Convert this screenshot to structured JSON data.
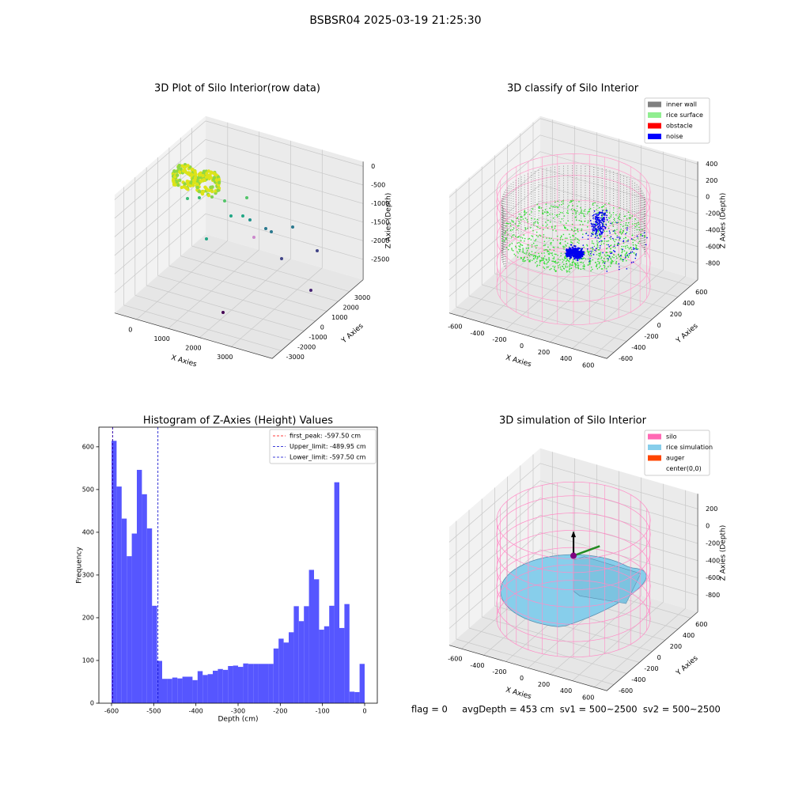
{
  "title": "BSBSR04 2025-03-19 21:25:30",
  "footer": "flag = 0     avgDepth = 453 cm  sv1 = 500~2500  sv2 = 500~2500",
  "chart_data": [
    {
      "type": "scatter3d",
      "title": "3D Plot of Silo Interior(row data)",
      "xlabel": "X Axies",
      "ylabel": "Y Axies",
      "zlabel": "Z Axies (Depth)",
      "xlim": [
        -700,
        4300
      ],
      "xticks": [
        0,
        1000,
        2000,
        3000
      ],
      "ylim": [
        -3800,
        4200
      ],
      "yticks": [
        -3000,
        -2000,
        -1000,
        0,
        1000,
        2000,
        3000
      ],
      "zlim": [
        -3050,
        130
      ],
      "zticks": [
        0,
        -500,
        -1000,
        -1500,
        -2000,
        -2500
      ],
      "grid": true
    },
    {
      "type": "scatter3d",
      "title": "3D classify of Silo Interior",
      "xlabel": "X Axies",
      "ylabel": "Y Axies",
      "zlabel": "Z Axies (Depth)",
      "xlim": [
        -710,
        710
      ],
      "xticks": [
        -600,
        -400,
        -200,
        0,
        200,
        400,
        600
      ],
      "ylim": [
        -710,
        710
      ],
      "yticks": [
        -600,
        -400,
        -200,
        0,
        200,
        400,
        600
      ],
      "zlim": [
        -1000,
        430
      ],
      "zticks": [
        -800,
        -600,
        -400,
        -200,
        0,
        200,
        400
      ],
      "grid": true,
      "legend": [
        {
          "name": "inner wall",
          "color": "#808080"
        },
        {
          "name": "rice surface",
          "color": "#90ee90"
        },
        {
          "name": "obstacle",
          "color": "#ff0000"
        },
        {
          "name": "noise",
          "color": "#0000ff"
        }
      ]
    },
    {
      "type": "histogram",
      "title": "Histogram of Z-Axies (Height) Values",
      "xlabel": "Depth (cm)",
      "ylabel": "Frequency",
      "color": "#4d4dff",
      "bins": [
        -600,
        -588,
        -576,
        -564,
        -552,
        -540,
        -528,
        -516,
        -504,
        -492,
        -480,
        -468,
        -456,
        -444,
        -432,
        -420,
        -408,
        -396,
        -384,
        -372,
        -360,
        -348,
        -336,
        -324,
        -312,
        -300,
        -288,
        -276,
        -264,
        -252,
        -240,
        -228,
        -216,
        -204,
        -192,
        -180,
        -168,
        -156,
        -144,
        -132,
        -120,
        -108,
        -96,
        -84,
        -72,
        -60,
        -48,
        -36,
        -24,
        -12,
        0
      ],
      "values": [
        614,
        507,
        432,
        344,
        397,
        546,
        489,
        409,
        228,
        99,
        57,
        57,
        60,
        58,
        62,
        62,
        54,
        75,
        66,
        68,
        76,
        80,
        78,
        87,
        88,
        85,
        93,
        92,
        92,
        92,
        92,
        92,
        128,
        151,
        142,
        166,
        227,
        192,
        227,
        312,
        290,
        172,
        180,
        228,
        517,
        176,
        232,
        27,
        26,
        92
      ],
      "xlim": [
        -630,
        30
      ],
      "xticks": [
        -600,
        -500,
        -400,
        -300,
        -200,
        -100,
        0
      ],
      "ylim": [
        0,
        646
      ],
      "yticks": [
        0,
        100,
        200,
        300,
        400,
        500,
        600
      ],
      "vlines": [
        {
          "label": "first_peak: -597.50 cm",
          "value": -597.5,
          "color": "#ff0000"
        },
        {
          "label": "Upper_limit: -489.95 cm",
          "value": -489.95,
          "color": "#0000cc"
        },
        {
          "label": "Lower_limit: -597.50 cm",
          "value": -597.5,
          "color": "#0000cc"
        }
      ]
    },
    {
      "type": "surface3d",
      "title": "3D simulation of Silo Interior",
      "xlabel": "X Axies",
      "ylabel": "Y Axies",
      "zlabel": "Z Axies (Depth)",
      "xlim": [
        -710,
        710
      ],
      "xticks": [
        -600,
        -400,
        -200,
        0,
        200,
        400,
        600
      ],
      "ylim": [
        -710,
        710
      ],
      "yticks": [
        -600,
        -400,
        -200,
        0,
        200,
        400,
        600
      ],
      "zlim": [
        -995,
        375
      ],
      "zticks": [
        -800,
        -600,
        -400,
        -200,
        0,
        200
      ],
      "grid": true,
      "legend": [
        {
          "name": "silo",
          "color": "#ff69b4"
        },
        {
          "name": "rice simulation",
          "color": "#87ceeb"
        },
        {
          "name": "auger",
          "color": "#ff4500"
        },
        {
          "name": "center(0,0)",
          "color": "none"
        }
      ]
    }
  ]
}
